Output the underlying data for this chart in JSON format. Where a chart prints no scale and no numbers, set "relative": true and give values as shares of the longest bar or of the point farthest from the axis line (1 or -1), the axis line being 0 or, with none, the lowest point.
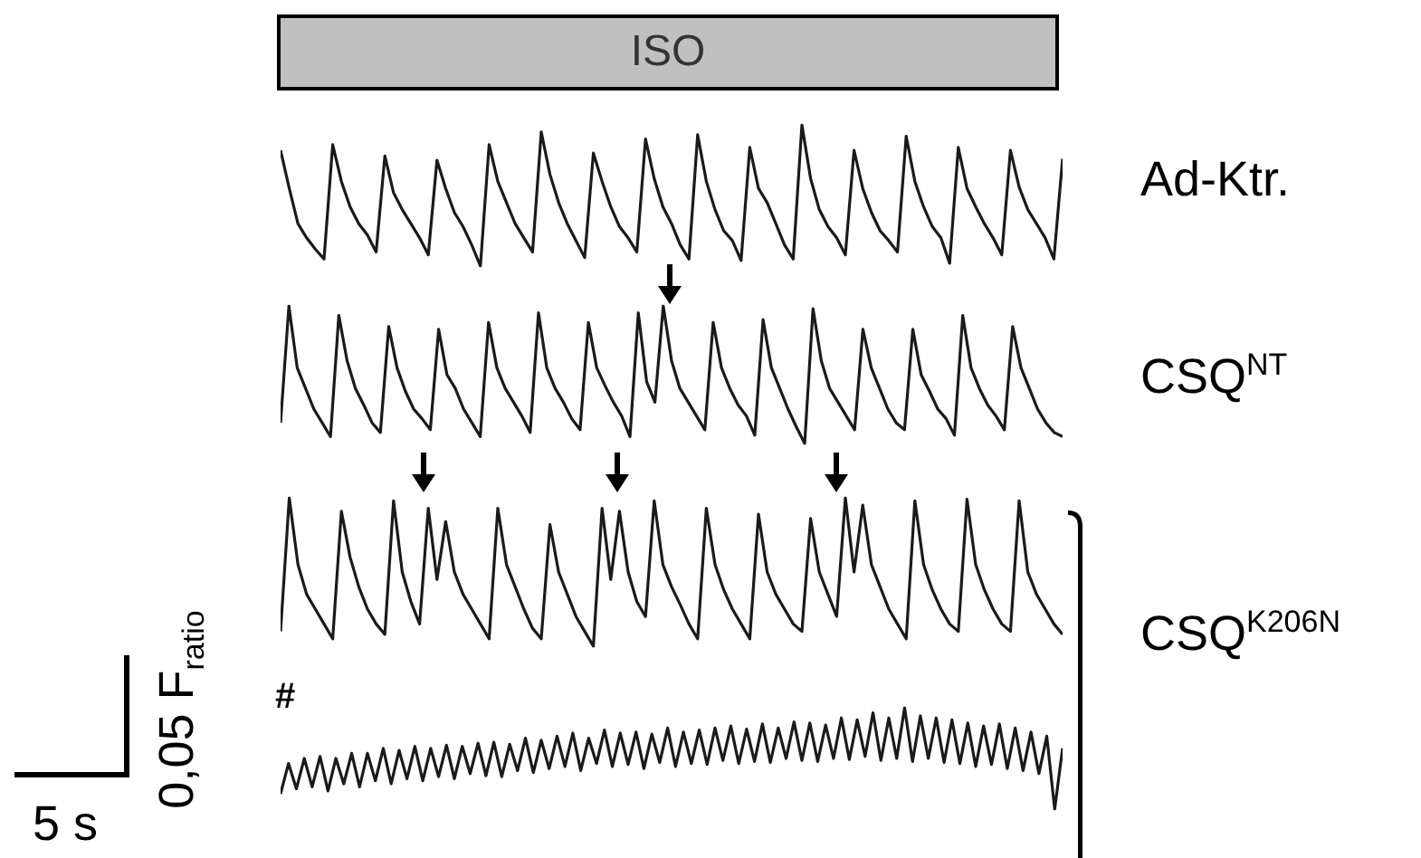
{
  "chart_data": [
    {
      "type": "line",
      "relative": true,
      "tick_labels": false,
      "legend": false,
      "marker": "none",
      "annotations": [
        "ISO"
      ],
      "categories": [
        null,
        null,
        null,
        null,
        null,
        null,
        null,
        null,
        null,
        null,
        null,
        null,
        null,
        null,
        null,
        null,
        null,
        null,
        null,
        null,
        null,
        null,
        null,
        null,
        null,
        null,
        null,
        null,
        null,
        null,
        null,
        null,
        null,
        null,
        null,
        null,
        null,
        null,
        null,
        null,
        null,
        null,
        null,
        null,
        null,
        null,
        null,
        null,
        null,
        null,
        null,
        null,
        null,
        null,
        null,
        null,
        null,
        null,
        null,
        null,
        null,
        null,
        null,
        null,
        null,
        null,
        null,
        null,
        null,
        null,
        null,
        null,
        null,
        null,
        null,
        null,
        null,
        null,
        null,
        null,
        null,
        null,
        null,
        null,
        null,
        null,
        null,
        null,
        null,
        null,
        null
      ],
      "series": [
        {
          "name": "Ad-Ktr.",
          "color": "#1a1a1a",
          "values": [
            0.82,
            0.55,
            0.3,
            0.2,
            0.12,
            0.05,
            0.86,
            0.6,
            0.42,
            0.3,
            0.22,
            0.1,
            0.78,
            0.52,
            0.4,
            0.3,
            0.2,
            0.08,
            0.75,
            0.55,
            0.38,
            0.28,
            0.15,
            0.0,
            0.86,
            0.6,
            0.45,
            0.3,
            0.2,
            0.1,
            0.95,
            0.65,
            0.45,
            0.3,
            0.18,
            0.06,
            0.8,
            0.6,
            0.42,
            0.28,
            0.2,
            0.1,
            0.9,
            0.62,
            0.42,
            0.3,
            0.15,
            0.05,
            0.93,
            0.6,
            0.4,
            0.25,
            0.18,
            0.04,
            0.84,
            0.55,
            0.45,
            0.3,
            0.15,
            0.05,
            1.0,
            0.62,
            0.4,
            0.28,
            0.2,
            0.08,
            0.82,
            0.55,
            0.38,
            0.25,
            0.18,
            0.1,
            0.92,
            0.6,
            0.42,
            0.28,
            0.2,
            0.02,
            0.84,
            0.55,
            0.42,
            0.3,
            0.2,
            0.08,
            0.82,
            0.56,
            0.4,
            0.3,
            0.2,
            0.05,
            0.76
          ]
        }
      ]
    },
    {
      "type": "line",
      "relative": true,
      "tick_labels": false,
      "legend": false,
      "marker": "none",
      "categories": [
        null,
        null,
        null,
        null,
        null,
        null,
        null,
        null,
        null,
        null,
        null,
        null,
        null,
        null,
        null,
        null,
        null,
        null,
        null,
        null,
        null,
        null,
        null,
        null,
        null,
        null,
        null,
        null,
        null,
        null,
        null,
        null,
        null,
        null,
        null,
        null,
        null,
        null,
        null,
        null,
        null,
        null,
        null,
        null,
        null,
        null,
        null,
        null,
        null,
        null,
        null,
        null,
        null,
        null,
        null,
        null,
        null,
        null,
        null,
        null,
        null,
        null,
        null,
        null,
        null,
        null,
        null,
        null,
        null,
        null,
        null,
        null,
        null,
        null,
        null,
        null,
        null,
        null,
        null,
        null,
        null,
        null,
        null,
        null,
        null,
        null,
        null,
        null,
        null,
        null,
        null,
        null,
        null,
        null,
        null
      ],
      "series": [
        {
          "name": "CSQ$^{NT}$",
          "color": "#1a1a1a",
          "values": [
            0.15,
            1.0,
            0.55,
            0.4,
            0.25,
            0.15,
            0.05,
            0.93,
            0.6,
            0.4,
            0.28,
            0.15,
            0.08,
            0.85,
            0.55,
            0.38,
            0.25,
            0.18,
            0.1,
            0.83,
            0.5,
            0.4,
            0.25,
            0.15,
            0.05,
            0.88,
            0.55,
            0.4,
            0.3,
            0.2,
            0.08,
            0.95,
            0.55,
            0.4,
            0.3,
            0.18,
            0.1,
            0.88,
            0.55,
            0.42,
            0.3,
            0.2,
            0.05,
            0.95,
            0.45,
            0.3,
            1.0,
            0.6,
            0.4,
            0.3,
            0.2,
            0.1,
            0.88,
            0.55,
            0.4,
            0.28,
            0.2,
            0.06,
            0.9,
            0.55,
            0.4,
            0.25,
            0.12,
            0.0,
            0.98,
            0.6,
            0.4,
            0.3,
            0.2,
            0.1,
            0.83,
            0.55,
            0.4,
            0.25,
            0.15,
            0.1,
            0.83,
            0.5,
            0.38,
            0.25,
            0.18,
            0.06,
            0.93,
            0.55,
            0.4,
            0.28,
            0.2,
            0.1,
            0.85,
            0.55,
            0.4,
            0.25,
            0.15,
            0.08,
            0.05
          ]
        }
      ]
    },
    {
      "type": "line",
      "relative": true,
      "tick_labels": false,
      "legend": false,
      "marker": "none",
      "categories": [
        null,
        null,
        null,
        null,
        null,
        null,
        null,
        null,
        null,
        null,
        null,
        null,
        null,
        null,
        null,
        null,
        null,
        null,
        null,
        null,
        null,
        null,
        null,
        null,
        null,
        null,
        null,
        null,
        null,
        null,
        null,
        null,
        null,
        null,
        null,
        null,
        null,
        null,
        null,
        null,
        null,
        null,
        null,
        null,
        null,
        null,
        null,
        null,
        null,
        null,
        null,
        null,
        null,
        null,
        null,
        null,
        null,
        null,
        null,
        null,
        null,
        null,
        null,
        null,
        null,
        null,
        null,
        null,
        null,
        null,
        null,
        null,
        null,
        null,
        null,
        null,
        null,
        null,
        null,
        null,
        null,
        null,
        null,
        null,
        null,
        null,
        null,
        null,
        null,
        null,
        null
      ],
      "series": [
        {
          "name": "CSQ$^{K206N}$",
          "color": "#1a1a1a",
          "values": [
            0.1,
            1.0,
            0.55,
            0.35,
            0.25,
            0.15,
            0.05,
            0.91,
            0.6,
            0.4,
            0.25,
            0.15,
            0.08,
            0.98,
            0.5,
            0.3,
            0.15,
            0.93,
            0.45,
            0.84,
            0.5,
            0.35,
            0.25,
            0.15,
            0.05,
            0.93,
            0.55,
            0.4,
            0.25,
            0.12,
            0.05,
            0.82,
            0.5,
            0.35,
            0.2,
            0.1,
            0.0,
            0.93,
            0.45,
            0.91,
            0.5,
            0.3,
            0.2,
            0.98,
            0.55,
            0.4,
            0.28,
            0.15,
            0.05,
            0.93,
            0.55,
            0.38,
            0.25,
            0.15,
            0.05,
            0.89,
            0.5,
            0.35,
            0.25,
            0.15,
            0.1,
            0.86,
            0.5,
            0.35,
            0.2,
            1.0,
            0.5,
            0.95,
            0.55,
            0.4,
            0.25,
            0.15,
            0.05,
            0.98,
            0.55,
            0.38,
            0.25,
            0.15,
            0.1,
            0.99,
            0.55,
            0.38,
            0.25,
            0.15,
            0.1,
            0.98,
            0.5,
            0.35,
            0.25,
            0.15,
            0.08
          ]
        }
      ]
    },
    {
      "type": "line",
      "relative": true,
      "tick_labels": false,
      "legend": false,
      "marker": "none",
      "annotations": [
        "#",
        "0,05 F$_{ratio}$",
        "5 s"
      ],
      "categories": [
        null,
        null,
        null,
        null,
        null,
        null,
        null,
        null,
        null,
        null,
        null,
        null,
        null,
        null,
        null,
        null,
        null,
        null,
        null,
        null,
        null,
        null,
        null,
        null,
        null,
        null,
        null,
        null,
        null,
        null,
        null,
        null,
        null,
        null,
        null,
        null,
        null,
        null,
        null,
        null,
        null,
        null,
        null,
        null,
        null,
        null,
        null,
        null,
        null,
        null,
        null,
        null,
        null,
        null,
        null,
        null,
        null,
        null,
        null,
        null,
        null,
        null,
        null,
        null,
        null,
        null,
        null,
        null,
        null,
        null,
        null,
        null,
        null,
        null,
        null,
        null,
        null,
        null,
        null,
        null,
        null,
        null,
        null,
        null,
        null,
        null,
        null,
        null,
        null,
        null,
        null,
        null,
        null,
        null,
        null,
        null,
        null,
        null,
        null,
        null
      ],
      "series": [
        {
          "color": "#1a1a1a",
          "values": [
            0.15,
            0.45,
            0.2,
            0.5,
            0.22,
            0.52,
            0.18,
            0.5,
            0.25,
            0.55,
            0.22,
            0.55,
            0.28,
            0.6,
            0.25,
            0.58,
            0.3,
            0.62,
            0.28,
            0.6,
            0.32,
            0.63,
            0.3,
            0.62,
            0.35,
            0.65,
            0.33,
            0.66,
            0.32,
            0.64,
            0.38,
            0.7,
            0.36,
            0.68,
            0.4,
            0.72,
            0.42,
            0.75,
            0.38,
            0.7,
            0.45,
            0.78,
            0.42,
            0.75,
            0.44,
            0.76,
            0.4,
            0.74,
            0.46,
            0.8,
            0.42,
            0.76,
            0.45,
            0.78,
            0.44,
            0.8,
            0.48,
            0.82,
            0.45,
            0.79,
            0.47,
            0.84,
            0.46,
            0.8,
            0.5,
            0.86,
            0.48,
            0.85,
            0.47,
            0.83,
            0.5,
            0.9,
            0.49,
            0.88,
            0.52,
            0.95,
            0.48,
            0.9,
            0.5,
            1.0,
            0.47,
            0.92,
            0.5,
            0.9,
            0.46,
            0.88,
            0.45,
            0.85,
            0.42,
            0.82,
            0.44,
            0.84,
            0.4,
            0.8,
            0.38,
            0.76,
            0.35,
            0.72,
            0.0,
            0.6
          ]
        }
      ]
    }
  ]
}
